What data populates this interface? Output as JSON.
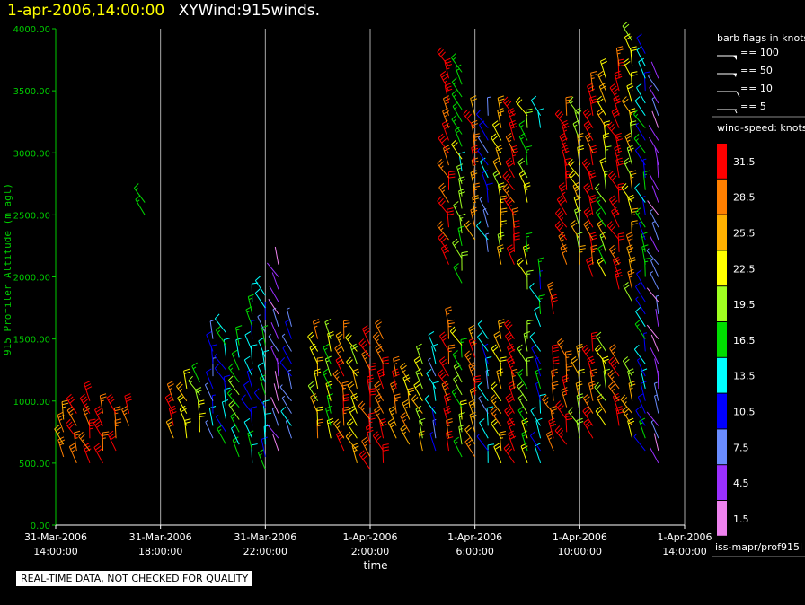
{
  "header": {
    "timestamp": "1-apr-2006,14:00:00",
    "name": "XYWind:915winds."
  },
  "chart_data": {
    "type": "scatter",
    "title": "XYWind:915winds.",
    "xlabel": "time",
    "ylabel": "915 Profiler Altitude (m agl)",
    "ylim": [
      0,
      4000
    ],
    "y_ticks": [
      "0.00",
      "500.00",
      "1000.00",
      "1500.00",
      "2000.00",
      "2500.00",
      "3000.00",
      "3500.00",
      "4000.00"
    ],
    "x_ticks": [
      {
        "date": "31-Mar-2006",
        "time": "14:00:00"
      },
      {
        "date": "31-Mar-2006",
        "time": "18:00:00"
      },
      {
        "date": "31-Mar-2006",
        "time": "22:00:00"
      },
      {
        "date": "1-Apr-2006",
        "time": "2:00:00"
      },
      {
        "date": "1-Apr-2006",
        "time": "6:00:00"
      },
      {
        "date": "1-Apr-2006",
        "time": "10:00:00"
      },
      {
        "date": "1-Apr-2006",
        "time": "14:00:00"
      }
    ],
    "xlim_hours": [
      0,
      24
    ],
    "grid": "vertical",
    "barb_profiles": [
      {
        "t": 0.3,
        "heights": [
          550,
          650,
          750,
          850
        ],
        "speed": 29
      },
      {
        "t": 0.8,
        "heights": [
          500,
          600,
          700,
          800,
          900
        ],
        "speed": 29
      },
      {
        "t": 1.3,
        "heights": [
          500,
          600,
          700,
          800,
          900,
          1000
        ],
        "speed": 32
      },
      {
        "t": 1.8,
        "heights": [
          500,
          600,
          700,
          800,
          900
        ],
        "speed": 32
      },
      {
        "t": 2.3,
        "heights": [
          600,
          700,
          800,
          900
        ],
        "speed": 32
      },
      {
        "t": 2.8,
        "heights": [
          800,
          900
        ],
        "speed": 29
      },
      {
        "t": 3.4,
        "heights": [
          2500,
          2600
        ],
        "speed": 18
      },
      {
        "t": 4.5,
        "heights": [
          700,
          800,
          900,
          1000
        ],
        "speed": 29
      },
      {
        "t": 5.0,
        "heights": [
          700,
          800,
          900,
          1000,
          1100
        ],
        "speed": 24
      },
      {
        "t": 5.5,
        "heights": [
          750,
          850,
          950,
          1050,
          1150
        ],
        "speed": 19
      },
      {
        "t": 6.0,
        "heights": [
          700,
          800,
          900,
          1000,
          1100,
          1200,
          1300,
          1400,
          1500
        ],
        "speed": 11
      },
      {
        "t": 6.5,
        "heights": [
          650,
          750,
          850,
          950,
          1050,
          1150,
          1250,
          1350,
          1450,
          1550
        ],
        "speed": 13
      },
      {
        "t": 7.0,
        "heights": [
          550,
          650,
          750,
          850,
          950,
          1050,
          1150,
          1250,
          1350,
          1450
        ],
        "speed": 18
      },
      {
        "t": 7.5,
        "heights": [
          500,
          600,
          700,
          800,
          900,
          1000,
          1100,
          1200,
          1300,
          1400,
          1500,
          1600,
          1700,
          1800
        ],
        "speed": 14
      },
      {
        "t": 8.0,
        "heights": [
          450,
          550,
          650,
          750,
          850,
          950,
          1050,
          1150,
          1250,
          1350,
          1450,
          1550,
          1650,
          1750,
          1850
        ],
        "speed": 12
      },
      {
        "t": 8.5,
        "heights": [
          600,
          700,
          800,
          900,
          1000,
          1100,
          1200,
          1300,
          1400,
          1500,
          1600,
          1700,
          1800,
          1900,
          2000,
          2100
        ],
        "speed": 5
      },
      {
        "t": 9.0,
        "heights": [
          700,
          800,
          900,
          1000,
          1100,
          1200,
          1300,
          1400,
          1500,
          1600
        ],
        "speed": 9
      },
      {
        "t": 10.0,
        "heights": [
          700,
          800,
          900,
          1000,
          1100,
          1200,
          1300,
          1400,
          1500
        ],
        "speed": 24
      },
      {
        "t": 10.5,
        "heights": [
          700,
          800,
          900,
          1000,
          1100,
          1200,
          1300,
          1400,
          1500
        ],
        "speed": 19
      },
      {
        "t": 11.0,
        "heights": [
          600,
          700,
          800,
          900,
          1000,
          1100,
          1200,
          1300,
          1400,
          1500
        ],
        "speed": 30
      },
      {
        "t": 11.5,
        "heights": [
          500,
          600,
          700,
          800,
          900,
          1000,
          1100,
          1200,
          1300,
          1400
        ],
        "speed": 24
      },
      {
        "t": 12.0,
        "heights": [
          450,
          550,
          650,
          750,
          850,
          950,
          1050,
          1150,
          1250,
          1350,
          1450
        ],
        "speed": 32
      },
      {
        "t": 12.5,
        "heights": [
          500,
          600,
          700,
          800,
          900,
          1000,
          1100,
          1200,
          1300,
          1400,
          1500
        ],
        "speed": 32
      },
      {
        "t": 13.0,
        "heights": [
          700,
          800,
          900,
          1000,
          1100,
          1200
        ],
        "speed": 29
      },
      {
        "t": 13.5,
        "heights": [
          650,
          750,
          850,
          950,
          1050,
          1150
        ],
        "speed": 26
      },
      {
        "t": 14.0,
        "heights": [
          600,
          700,
          800,
          900,
          1000,
          1100,
          1200,
          1300
        ],
        "speed": 22
      },
      {
        "t": 14.5,
        "heights": [
          600,
          700,
          800,
          900,
          1000,
          1100,
          1200,
          1300,
          1400
        ],
        "speed": 10
      },
      {
        "t": 15.0,
        "heights": [
          600,
          700,
          800,
          900,
          1000,
          1100,
          1200,
          1300,
          1400,
          1500,
          1600,
          2100,
          2200,
          2300,
          2400,
          2500,
          2600,
          2700,
          2800,
          2900,
          3000,
          3100,
          3200,
          3300,
          3400,
          3500,
          3600,
          3700
        ],
        "speed": 32
      },
      {
        "t": 15.5,
        "heights": [
          550,
          650,
          750,
          850,
          950,
          1050,
          1150,
          1250,
          1350,
          1450,
          1950,
          2050,
          2150,
          2250,
          2350,
          2450,
          2550,
          2650,
          2750,
          2850,
          2950,
          3050,
          3150,
          3250,
          3350,
          3450,
          3550,
          3650
        ],
        "speed": 18
      },
      {
        "t": 16.0,
        "heights": [
          550,
          650,
          750,
          850,
          950,
          1050,
          1150,
          1250,
          1350,
          1450,
          2300,
          2400,
          2500,
          2600,
          2700,
          2800,
          2900,
          3000,
          3100,
          3200,
          3300
        ],
        "speed": 28
      },
      {
        "t": 16.5,
        "heights": [
          500,
          600,
          700,
          800,
          900,
          1000,
          1100,
          1200,
          1300,
          1400,
          1500,
          2200,
          2300,
          2400,
          2500,
          2600,
          2700,
          2800,
          2900,
          3000,
          3100,
          3200,
          3300
        ],
        "speed": 11
      },
      {
        "t": 17.0,
        "heights": [
          500,
          600,
          700,
          800,
          900,
          1000,
          1100,
          1200,
          1300,
          1400,
          1500,
          2100,
          2200,
          2300,
          2400,
          2500,
          2600,
          2700,
          2800,
          2900,
          3000,
          3100,
          3200,
          3300
        ],
        "speed": 24
      },
      {
        "t": 17.5,
        "heights": [
          500,
          600,
          700,
          800,
          900,
          1000,
          1100,
          1200,
          1300,
          1400,
          1500,
          2100,
          2200,
          2300,
          2400,
          2500,
          2600,
          2700,
          2800,
          2900,
          3000,
          3100,
          3200,
          3300
        ],
        "speed": 32
      },
      {
        "t": 18.0,
        "heights": [
          500,
          600,
          700,
          800,
          900,
          1000,
          1100,
          1200,
          1300,
          1400,
          1500,
          1900,
          2000,
          2100,
          2200,
          2600,
          2700,
          2800,
          2900,
          3000,
          3100,
          3200,
          3300
        ],
        "speed": 20
      },
      {
        "t": 18.5,
        "heights": [
          500,
          600,
          700,
          800,
          900,
          1000,
          1100,
          1200,
          1300,
          1400,
          1600,
          1700,
          1800,
          1900,
          2000,
          3200,
          3300
        ],
        "speed": 13
      },
      {
        "t": 19.0,
        "heights": [
          600,
          700,
          800,
          900,
          1000,
          1100,
          1200,
          1300,
          1700,
          1800
        ],
        "speed": 30
      },
      {
        "t": 19.5,
        "heights": [
          650,
          750,
          850,
          950,
          1050,
          1150,
          1250,
          1350,
          2100,
          2200,
          2300,
          2400,
          2500,
          2600,
          2700,
          2800,
          2900,
          3000,
          3100,
          3200,
          3300
        ],
        "speed": 32
      },
      {
        "t": 20.0,
        "heights": [
          700,
          800,
          900,
          1000,
          1100,
          1200,
          1300,
          2100,
          2200,
          2300,
          2400,
          2500,
          2600,
          2700,
          2800,
          2900,
          3000,
          3100,
          3200,
          3300
        ],
        "speed": 23
      },
      {
        "t": 20.5,
        "heights": [
          700,
          800,
          900,
          1000,
          1100,
          1200,
          1300,
          1400,
          2000,
          2100,
          2200,
          2300,
          2400,
          2500,
          2600,
          2700,
          2800,
          2900,
          3000,
          3100,
          3200,
          3300,
          3400,
          3500
        ],
        "speed": 31
      },
      {
        "t": 21.0,
        "heights": [
          800,
          900,
          1000,
          1100,
          1200,
          1300,
          1400,
          2000,
          2100,
          2200,
          2300,
          2400,
          2500,
          2600,
          2700,
          2800,
          2900,
          3000,
          3100,
          3200,
          3300,
          3400,
          3500,
          3600
        ],
        "speed": 21
      },
      {
        "t": 21.5,
        "heights": [
          800,
          900,
          1000,
          1100,
          1200,
          1300,
          1900,
          2000,
          2100,
          2200,
          2300,
          2400,
          2500,
          2600,
          2700,
          2800,
          2900,
          3000,
          3100,
          3200,
          3300,
          3400,
          3500,
          3600,
          3700
        ],
        "speed": 32
      },
      {
        "t": 22.0,
        "heights": [
          700,
          800,
          900,
          1000,
          1100,
          1200,
          1800,
          1900,
          2000,
          2100,
          2200,
          2300,
          2400,
          2500,
          2600,
          2700,
          2800,
          2900,
          3000,
          3100,
          3200,
          3300,
          3400,
          3500,
          3600,
          3700,
          3800,
          3900
        ],
        "speed": 24
      },
      {
        "t": 22.5,
        "heights": [
          600,
          700,
          800,
          900,
          1000,
          1100,
          1200,
          1300,
          1400,
          1500,
          1600,
          1700,
          1800,
          1900,
          2000,
          2100,
          2200,
          2300,
          2400,
          2500,
          2600,
          2700,
          2800,
          2900,
          3000,
          3100,
          3200,
          3300,
          3400,
          3500,
          3600,
          3700,
          3800
        ],
        "speed": 13
      },
      {
        "t": 23.0,
        "heights": [
          500,
          600,
          700,
          800,
          900,
          1000,
          1100,
          1200,
          1300,
          1400,
          1500,
          1600,
          1700,
          1800,
          1900,
          2000,
          2100,
          2200,
          2300,
          2400,
          2500,
          2600,
          2700,
          2800,
          2900,
          3000,
          3100,
          3200,
          3300,
          3400,
          3500,
          3600
        ],
        "speed": 5
      }
    ]
  },
  "legend": {
    "flags_title": "barb flags in knots",
    "flags": [
      {
        "label": "== 100",
        "kind": "pennant"
      },
      {
        "label": "== 50",
        "kind": "pennant-small"
      },
      {
        "label": "== 10",
        "kind": "full"
      },
      {
        "label": "== 5",
        "kind": "half"
      }
    ],
    "speed_title": "wind-speed: knots",
    "speed_bins": [
      {
        "label": "31.5",
        "color": "#ff0000"
      },
      {
        "label": "28.5",
        "color": "#ff7f00"
      },
      {
        "label": "25.5",
        "color": "#ffb000"
      },
      {
        "label": "22.5",
        "color": "#ffff00"
      },
      {
        "label": "19.5",
        "color": "#a0ff20"
      },
      {
        "label": "16.5",
        "color": "#00dd00"
      },
      {
        "label": "13.5",
        "color": "#00ffff"
      },
      {
        "label": "10.5",
        "color": "#0000ff"
      },
      {
        "label": "7.5",
        "color": "#6a8cff"
      },
      {
        "label": "4.5",
        "color": "#9b30ff"
      },
      {
        "label": "1.5",
        "color": "#ee82ee"
      }
    ]
  },
  "footer": {
    "quality_note": "REAL-TIME DATA, NOT CHECKED FOR QUALITY",
    "source": "iss-mapr/prof915l"
  }
}
